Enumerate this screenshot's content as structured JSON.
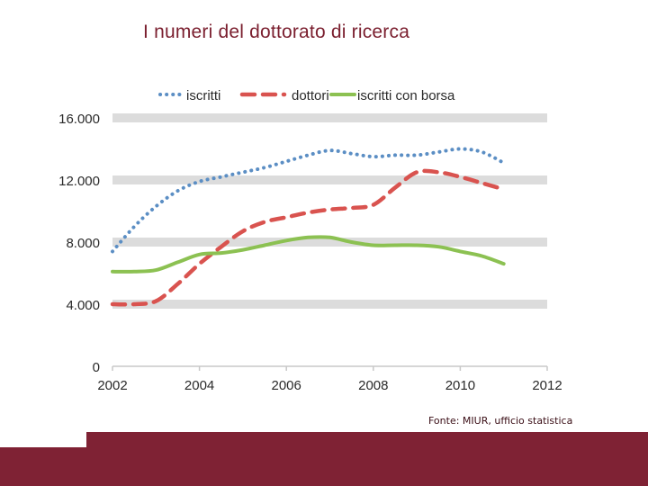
{
  "slide": {
    "title": "I numeri del dottorato di ricerca",
    "source": "Fonte: MIUR, ufficio statistica"
  },
  "colors": {
    "title": "#7a1e2e",
    "band": "#dcdcdc",
    "footer": "#7f2234"
  },
  "chart_data": {
    "type": "line",
    "title": "",
    "xlabel": "",
    "ylabel": "",
    "xlim": [
      2002,
      2012
    ],
    "ylim": [
      0,
      16000
    ],
    "x_ticks": [
      2002,
      2004,
      2006,
      2008,
      2010,
      2012
    ],
    "x_tick_labels": [
      "2002",
      "2004",
      "2006",
      "2008",
      "2010",
      "2012"
    ],
    "y_ticks": [
      0,
      4000,
      8000,
      12000,
      16000
    ],
    "y_tick_labels": [
      "0",
      "4.000",
      "8.000",
      "12.000",
      "16.000"
    ],
    "grid": "horizontal bands at labeled y ticks",
    "legend": "top",
    "series": [
      {
        "name": "iscritti",
        "style": "dotted",
        "color": "#5b8ec4",
        "x": [
          2002,
          2002.5,
          2003,
          2003.5,
          2004,
          2004.5,
          2005,
          2005.5,
          2006,
          2006.5,
          2007,
          2007.5,
          2008,
          2008.5,
          2009,
          2009.5,
          2010,
          2010.5,
          2011
        ],
        "values": [
          7400,
          9000,
          10300,
          11300,
          11900,
          12200,
          12500,
          12800,
          13200,
          13600,
          13900,
          13700,
          13500,
          13600,
          13600,
          13800,
          14000,
          13800,
          13100
        ]
      },
      {
        "name": "dottori",
        "style": "dashed",
        "color": "#d9534f",
        "x": [
          2002,
          2002.5,
          2003,
          2003.5,
          2004,
          2004.5,
          2005,
          2005.5,
          2006,
          2006.5,
          2007,
          2007.5,
          2008,
          2008.5,
          2009,
          2009.5,
          2010,
          2010.5,
          2011
        ],
        "values": [
          4000,
          4000,
          4200,
          5300,
          6600,
          7700,
          8700,
          9300,
          9600,
          9900,
          10100,
          10200,
          10400,
          11500,
          12500,
          12500,
          12200,
          11800,
          11400
        ]
      },
      {
        "name": "iscritti con borsa",
        "style": "solid",
        "color": "#8cc152",
        "x": [
          2002,
          2002.5,
          2003,
          2003.5,
          2004,
          2004.5,
          2005,
          2005.5,
          2006,
          2006.5,
          2007,
          2007.5,
          2008,
          2008.5,
          2009,
          2009.5,
          2010,
          2010.5,
          2011
        ],
        "values": [
          6100,
          6100,
          6200,
          6700,
          7200,
          7300,
          7500,
          7800,
          8100,
          8300,
          8300,
          8000,
          7800,
          7800,
          7800,
          7700,
          7400,
          7100,
          6600
        ]
      }
    ]
  }
}
